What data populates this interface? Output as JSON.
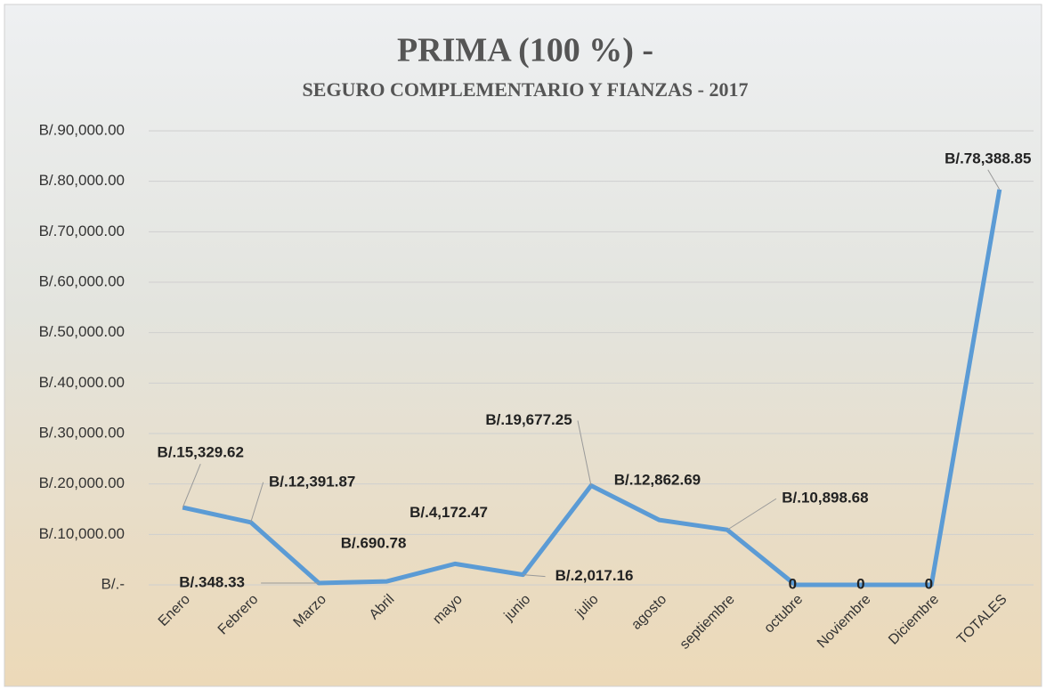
{
  "chart_data": {
    "type": "line",
    "title": "PRIMA (100 %) -",
    "subtitle": "SEGURO COMPLEMENTARIO Y FIANZAS - 2017",
    "categories": [
      "Enero",
      "Febrero",
      "Marzo",
      "Abril",
      "mayo",
      "junio",
      "julio",
      "agosto",
      "septiembre",
      "octubre",
      "Noviembre",
      "Diciembre",
      "TOTALES"
    ],
    "values": [
      15329.62,
      12391.87,
      348.33,
      690.78,
      4172.47,
      2017.16,
      19677.25,
      12862.69,
      10898.68,
      0,
      0,
      0,
      78388.85
    ],
    "value_labels": [
      "B/.15,329.62",
      "B/.12,391.87",
      "B/.348.33",
      "B/.690.78",
      "B/.4,172.47",
      "B/.2,017.16",
      "B/.19,677.25",
      "B/.12,862.69",
      "B/.10,898.68",
      "0",
      "0",
      "0",
      "B/.78,388.85"
    ],
    "color": "#5b9bd5",
    "ylim": [
      0,
      90000
    ],
    "yticks": [
      {
        "value": 0,
        "label": "B/.-"
      },
      {
        "value": 10000,
        "label": "B/.10,000.00"
      },
      {
        "value": 20000,
        "label": "B/.20,000.00"
      },
      {
        "value": 30000,
        "label": "B/.30,000.00"
      },
      {
        "value": 40000,
        "label": "B/.40,000.00"
      },
      {
        "value": 50000,
        "label": "B/.50,000.00"
      },
      {
        "value": 60000,
        "label": "B/.60,000.00"
      },
      {
        "value": 70000,
        "label": "B/.70,000.00"
      },
      {
        "value": 80000,
        "label": "B/.80,000.00"
      },
      {
        "value": 90000,
        "label": "B/.90,000.00"
      }
    ],
    "grid": true
  }
}
